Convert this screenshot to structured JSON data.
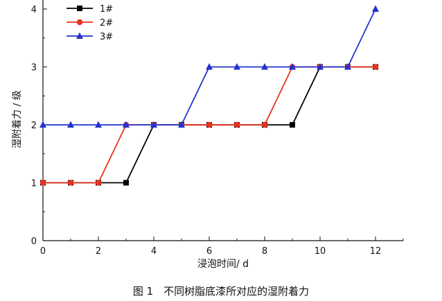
{
  "chart_data": {
    "type": "line",
    "title": "",
    "xlabel": "浸泡时间/ d",
    "ylabel": "湿附着力 / 级",
    "xlim": [
      0,
      13
    ],
    "ylim": [
      0,
      4.2
    ],
    "x_ticks": [
      0,
      2,
      4,
      6,
      8,
      10,
      12
    ],
    "y_ticks": [
      0,
      1,
      2,
      3,
      4
    ],
    "grid": false,
    "legend_position": "top-left",
    "x": [
      0,
      1,
      2,
      3,
      4,
      5,
      6,
      7,
      8,
      9,
      10,
      11,
      12
    ],
    "series": [
      {
        "name": "1#",
        "color": "#000000",
        "marker": "square",
        "values": [
          1,
          1,
          1,
          1,
          2,
          2,
          2,
          2,
          2,
          2,
          3,
          3,
          3
        ]
      },
      {
        "name": "2#",
        "color": "#e8321e",
        "marker": "circle",
        "values": [
          1,
          1,
          1,
          2,
          2,
          2,
          2,
          2,
          2,
          3,
          3,
          3,
          3
        ]
      },
      {
        "name": "3#",
        "color": "#2233cc",
        "marker": "triangle",
        "values": [
          2,
          2,
          2,
          2,
          2,
          2,
          3,
          3,
          3,
          3,
          3,
          3,
          4
        ]
      }
    ]
  },
  "caption": "图 1　不同树脂底漆所对应的湿附着力"
}
